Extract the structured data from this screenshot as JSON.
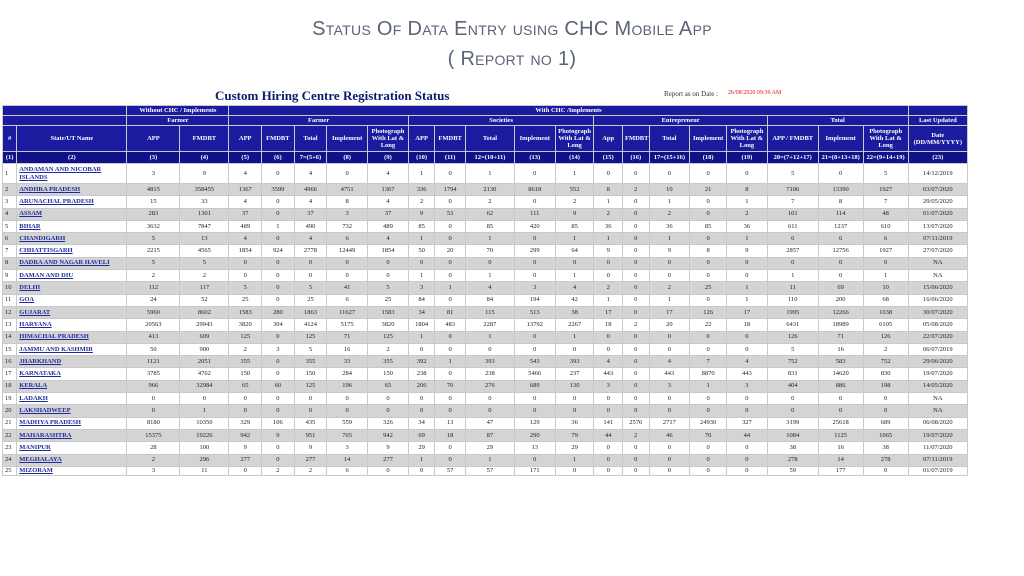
{
  "slide": {
    "title_line1": "Status Of Data Entry using CHC Mobile App",
    "title_line2": "( Report no 1)"
  },
  "report": {
    "title": "Custom Hiring Centre Registration Status",
    "as_on_label": "Report as on Date :",
    "as_on_value": "26/08/2020 09:36 AM"
  },
  "header": {
    "without_chc": "Without CHC / Implements",
    "with_chc": "With CHC /Implements",
    "farmer": "Farmer",
    "societies": "Societies",
    "entrepreneur": "Entrepreneur",
    "total": "Total",
    "last_updated": "Last Updated",
    "columns": [
      "#",
      "State/UT Name",
      "APP",
      "FMDBT",
      "APP",
      "FMDBT",
      "Total",
      "Implement",
      "Photograph With Lat & Long",
      "APP",
      "FMDBT",
      "Total",
      "Implement",
      "Photograph With Lat & Long",
      "App",
      "FMDBT",
      "Total",
      "Implement",
      "Photograph With Lat & Long",
      "APP / FMDBT",
      "Implement",
      "Photograph With Lat & Long",
      "Date (DD/MM/YYYY)"
    ],
    "col_numbers": [
      "(1)",
      "(2)",
      "(3)",
      "(4)",
      "(5)",
      "(6)",
      "7=(5+6)",
      "(8)",
      "(9)",
      "(10)",
      "(11)",
      "12=(10+11)",
      "(13)",
      "(14)",
      "(15)",
      "(16)",
      "17=(15+16)",
      "(18)",
      "(19)",
      "20=(7+12+17)",
      "21=(8+13+18)",
      "22=(9+14+19)",
      "(23)"
    ]
  },
  "rows": [
    [
      "1",
      "ANDAMAN AND NICOBAR ISLANDS",
      "3",
      "9",
      "4",
      "0",
      "4",
      "0",
      "4",
      "1",
      "0",
      "1",
      "0",
      "1",
      "0",
      "0",
      "0",
      "0",
      "0",
      "5",
      "0",
      "5",
      "14/12/2019"
    ],
    [
      "2",
      "ANDHRA PRADESH",
      "4815",
      "358455",
      "1367",
      "3599",
      "4966",
      "4751",
      "1367",
      "336",
      "1794",
      "2130",
      "8618",
      "552",
      "8",
      "2",
      "10",
      "21",
      "8",
      "7106",
      "13390",
      "1927",
      "03/07/2020"
    ],
    [
      "3",
      "ARUNACHAL PRADESH",
      "15",
      "33",
      "4",
      "0",
      "4",
      "8",
      "4",
      "2",
      "0",
      "2",
      "0",
      "2",
      "1",
      "0",
      "1",
      "0",
      "1",
      "7",
      "8",
      "7",
      "29/05/2020"
    ],
    [
      "4",
      "ASSAM",
      "283",
      "1301",
      "37",
      "0",
      "37",
      "3",
      "37",
      "9",
      "53",
      "62",
      "111",
      "9",
      "2",
      "0",
      "2",
      "0",
      "2",
      "101",
      "114",
      "48",
      "01/07/2020"
    ],
    [
      "5",
      "BIHAR",
      "3632",
      "7847",
      "489",
      "1",
      "490",
      "732",
      "489",
      "85",
      "0",
      "85",
      "420",
      "85",
      "36",
      "0",
      "36",
      "85",
      "36",
      "611",
      "1237",
      "610",
      "13/07/2020"
    ],
    [
      "6",
      "CHANDIGARH",
      "5",
      "13",
      "4",
      "0",
      "4",
      "6",
      "4",
      "1",
      "0",
      "1",
      "0",
      "1",
      "1",
      "0",
      "1",
      "0",
      "1",
      "6",
      "6",
      "6",
      "07/11/2019"
    ],
    [
      "7",
      "CHHATTISGARH",
      "2215",
      "4565",
      "1854",
      "924",
      "2778",
      "12449",
      "1854",
      "50",
      "20",
      "70",
      "299",
      "64",
      "9",
      "0",
      "9",
      "8",
      "9",
      "2857",
      "12756",
      "1927",
      "27/07/2020"
    ],
    [
      "8",
      "DADRA AND NAGAR HAVELI",
      "5",
      "5",
      "0",
      "0",
      "0",
      "0",
      "0",
      "0",
      "0",
      "0",
      "0",
      "0",
      "0",
      "0",
      "0",
      "0",
      "0",
      "0",
      "0",
      "0",
      "NA"
    ],
    [
      "9",
      "DAMAN AND DIU",
      "2",
      "2",
      "0",
      "0",
      "0",
      "0",
      "0",
      "1",
      "0",
      "1",
      "0",
      "1",
      "0",
      "0",
      "0",
      "0",
      "0",
      "1",
      "0",
      "1",
      "NA"
    ],
    [
      "10",
      "DELHI",
      "112",
      "117",
      "5",
      "0",
      "5",
      "41",
      "5",
      "3",
      "1",
      "4",
      "3",
      "4",
      "2",
      "0",
      "2",
      "25",
      "1",
      "11",
      "69",
      "10",
      "15/06/2020"
    ],
    [
      "11",
      "GOA",
      "24",
      "52",
      "25",
      "0",
      "25",
      "6",
      "25",
      "84",
      "0",
      "84",
      "194",
      "42",
      "1",
      "0",
      "1",
      "0",
      "1",
      "110",
      "200",
      "68",
      "16/06/2020"
    ],
    [
      "12",
      "GUJARAT",
      "5960",
      "8602",
      "1583",
      "280",
      "1863",
      "11627",
      "1583",
      "34",
      "81",
      "115",
      "513",
      "38",
      "17",
      "0",
      "17",
      "126",
      "17",
      "1995",
      "12266",
      "1638",
      "30/07/2020"
    ],
    [
      "13",
      "HARYANA",
      "20563",
      "29943",
      "3820",
      "304",
      "4124",
      "5175",
      "3820",
      "1804",
      "483",
      "2287",
      "13792",
      "2267",
      "18",
      "2",
      "20",
      "22",
      "18",
      "6431",
      "18989",
      "6105",
      "05/08/2020"
    ],
    [
      "14",
      "HIMACHAL PRADESH",
      "413",
      "609",
      "125",
      "0",
      "125",
      "71",
      "125",
      "1",
      "0",
      "1",
      "0",
      "1",
      "0",
      "0",
      "0",
      "0",
      "0",
      "126",
      "71",
      "126",
      "22/07/2020"
    ],
    [
      "15",
      "JAMMU AND KASHMIR",
      "50",
      "900",
      "2",
      "3",
      "5",
      "16",
      "2",
      "0",
      "0",
      "0",
      "0",
      "0",
      "0",
      "0",
      "0",
      "0",
      "0",
      "5",
      "16",
      "2",
      "06/07/2019"
    ],
    [
      "16",
      "JHARKHAND",
      "1121",
      "2051",
      "355",
      "0",
      "355",
      "33",
      "355",
      "392",
      "1",
      "393",
      "543",
      "393",
      "4",
      "0",
      "4",
      "7",
      "4",
      "752",
      "583",
      "752",
      "29/06/2020"
    ],
    [
      "17",
      "KARNATAKA",
      "3785",
      "4762",
      "150",
      "0",
      "150",
      "284",
      "150",
      "238",
      "0",
      "238",
      "5466",
      "237",
      "443",
      "0",
      "443",
      "8870",
      "443",
      "831",
      "14620",
      "830",
      "19/07/2020"
    ],
    [
      "18",
      "KERALA",
      "966",
      "32984",
      "65",
      "60",
      "125",
      "196",
      "65",
      "206",
      "70",
      "276",
      "689",
      "130",
      "3",
      "0",
      "3",
      "1",
      "3",
      "404",
      "886",
      "198",
      "14/05/2020"
    ],
    [
      "19",
      "LADAKH",
      "0",
      "0",
      "0",
      "0",
      "0",
      "0",
      "0",
      "0",
      "0",
      "0",
      "0",
      "0",
      "0",
      "0",
      "0",
      "0",
      "0",
      "0",
      "0",
      "0",
      "NA"
    ],
    [
      "20",
      "LAKSHADWEEP",
      "0",
      "1",
      "0",
      "0",
      "0",
      "0",
      "0",
      "0",
      "0",
      "0",
      "0",
      "0",
      "0",
      "0",
      "0",
      "0",
      "0",
      "0",
      "0",
      "0",
      "NA"
    ],
    [
      "21",
      "MADHYA PRADESH",
      "8180",
      "10350",
      "329",
      "106",
      "435",
      "559",
      "326",
      "34",
      "13",
      "47",
      "129",
      "36",
      "141",
      "2576",
      "2717",
      "24930",
      "327",
      "3199",
      "25618",
      "689",
      "06/08/2020"
    ],
    [
      "22",
      "MAHARASHTRA",
      "15375",
      "19226",
      "942",
      "9",
      "951",
      "765",
      "942",
      "69",
      "18",
      "87",
      "290",
      "79",
      "44",
      "2",
      "46",
      "70",
      "44",
      "1084",
      "1125",
      "1065",
      "19/07/2020"
    ],
    [
      "23",
      "MANIPUR",
      "28",
      "100",
      "9",
      "0",
      "9",
      "3",
      "9",
      "29",
      "0",
      "29",
      "13",
      "29",
      "0",
      "0",
      "0",
      "0",
      "0",
      "38",
      "16",
      "38",
      "11/07/2020"
    ],
    [
      "24",
      "MEGHALAYA",
      "2",
      "296",
      "277",
      "0",
      "277",
      "14",
      "277",
      "1",
      "0",
      "1",
      "0",
      "1",
      "0",
      "0",
      "0",
      "0",
      "0",
      "278",
      "14",
      "278",
      "07/11/2019"
    ],
    [
      "25",
      "MIZORAM",
      "3",
      "11",
      "0",
      "2",
      "2",
      "6",
      "0",
      "0",
      "57",
      "57",
      "171",
      "0",
      "0",
      "0",
      "0",
      "0",
      "0",
      "59",
      "177",
      "0",
      "01/07/2019"
    ]
  ]
}
